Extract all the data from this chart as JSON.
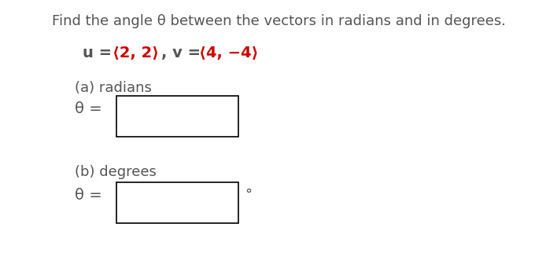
{
  "title": "Find the angle θ between the vectors in radians and in degrees.",
  "u_prefix": "u = ",
  "u_vector": "⟨2, 2⟩",
  "v_prefix": ", v = ",
  "v_vector": "⟨4, −4⟩",
  "vector_color": "#cc0000",
  "text_color": "#555555",
  "part_a_label": "(a) radians",
  "part_b_label": "(b) degrees",
  "theta_label": "θ = ",
  "degree_symbol": "°",
  "box_color": "#000000",
  "background_color": "#ffffff",
  "title_fontsize": 13,
  "body_fontsize": 13,
  "vector_fontsize": 14
}
